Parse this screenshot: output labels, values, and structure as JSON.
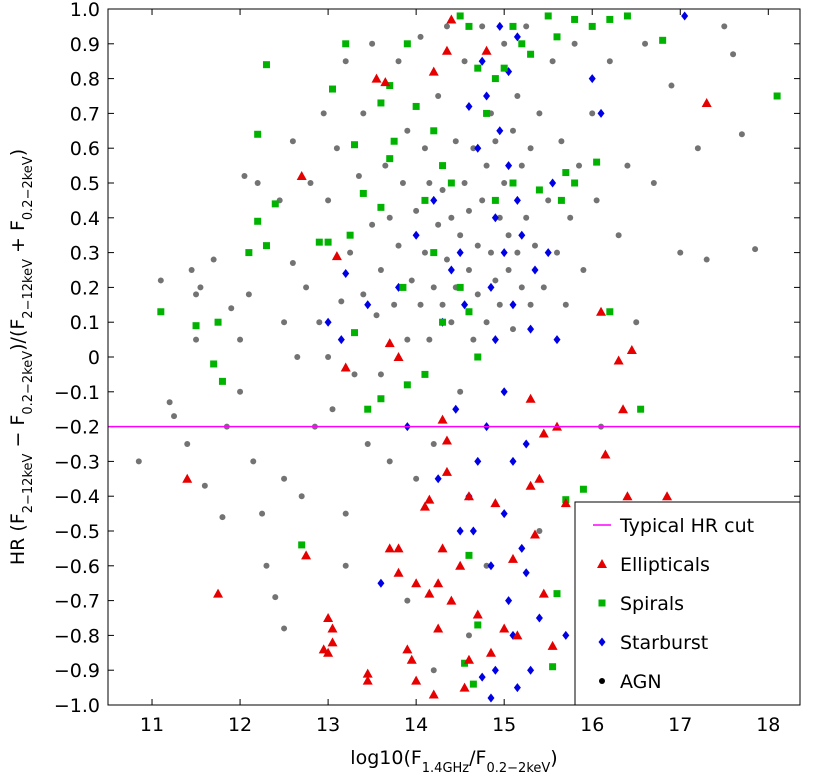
{
  "chart_data": {
    "type": "scatter",
    "xlabel": [
      {
        "text": "log10(F"
      },
      {
        "sub": "1.4GHz"
      },
      {
        "text": "/F"
      },
      {
        "sub": "0.2−2keV"
      },
      {
        "text": ")"
      }
    ],
    "ylabel": [
      {
        "text": "HR (F"
      },
      {
        "sub": "2−12keV"
      },
      {
        "text": " − F"
      },
      {
        "sub": "0.2−2keV"
      },
      {
        "text": ")/(F"
      },
      {
        "sub": "2−12keV"
      },
      {
        "text": " + F"
      },
      {
        "sub": "0.2−2keV"
      },
      {
        "text": ")"
      }
    ],
    "xlim": [
      10.5,
      18.36
    ],
    "ylim": [
      -1,
      1
    ],
    "xticks": [
      11,
      12,
      13,
      14,
      15,
      16,
      17,
      18
    ],
    "yticks": [
      {
        "value": -1,
        "label": "−1.0"
      },
      {
        "value": -0.9,
        "label": "−0.9"
      },
      {
        "value": -0.8,
        "label": "−0.8"
      },
      {
        "value": -0.7,
        "label": "−0.7"
      },
      {
        "value": -0.6,
        "label": "−0.6"
      },
      {
        "value": -0.5,
        "label": "−0.5"
      },
      {
        "value": -0.4,
        "label": "−0.4"
      },
      {
        "value": -0.3,
        "label": "−0.3"
      },
      {
        "value": -0.2,
        "label": "−0.2"
      },
      {
        "value": -0.1,
        "label": "−0.1"
      },
      0,
      0.1,
      0.2,
      0.3,
      0.4,
      0.5,
      0.6,
      0.7,
      0.8,
      0.9,
      {
        "value": 1,
        "label": "1.0"
      }
    ],
    "hlines": [
      {
        "name": "Typical HR cut",
        "color": "#ff00ff",
        "value": -0.2
      }
    ],
    "legend": "lower right",
    "series": [
      {
        "name": "Ellipticals",
        "color": "#e60000",
        "marker": "triangle",
        "alpha": 1,
        "x": [
          11.4,
          11.75,
          12.7,
          12.75,
          13.0,
          13.05,
          13.05,
          12.95,
          13.0,
          13.1,
          13.45,
          13.45,
          13.8,
          13.7,
          13.8,
          13.9,
          13.95,
          14.0,
          14.1,
          14.15,
          14.2,
          14.25,
          14.3,
          14.25,
          14.35,
          14.4,
          14.5,
          14.55,
          14.6,
          14.85,
          14.9,
          14.7,
          15.1,
          15.3,
          15.35,
          15.4,
          15.6,
          15.7,
          15.9,
          16.15,
          16.3,
          16.45,
          16.35,
          16.05,
          16.4,
          16.85,
          16.1,
          16.35,
          17.3,
          13.2,
          13.7,
          13.8,
          14.3,
          14.35,
          15.45,
          15.3,
          13.55,
          13.65,
          14.35,
          14.8,
          14.4,
          14.2,
          15.15,
          15.55,
          15.45,
          15.0,
          14.6,
          14.15,
          14.0
        ],
        "y": [
          -0.35,
          -0.68,
          0.52,
          -0.57,
          -0.75,
          -0.78,
          -0.82,
          -0.84,
          -0.85,
          0.29,
          -0.91,
          -0.93,
          -0.55,
          -0.55,
          -0.62,
          -0.84,
          -0.87,
          -0.93,
          -0.43,
          -0.41,
          -0.97,
          -0.65,
          -0.55,
          -0.78,
          -0.33,
          -0.7,
          -0.6,
          -0.95,
          -0.4,
          -0.85,
          -0.42,
          -0.74,
          -0.58,
          -0.37,
          -0.51,
          -0.35,
          -0.2,
          -0.42,
          -0.43,
          -0.28,
          -0.01,
          0.02,
          -0.15,
          -0.51,
          -0.4,
          -0.4,
          0.13,
          -0.55,
          0.73,
          -0.03,
          0.04,
          0.0,
          -0.18,
          -0.24,
          -0.22,
          -0.12,
          0.8,
          0.79,
          0.88,
          0.88,
          0.97,
          0.82,
          -0.8,
          -0.83,
          -0.68,
          -0.78,
          -0.87,
          -0.68,
          -0.65
        ]
      },
      {
        "name": "Spirals",
        "color": "#00b300",
        "marker": "square",
        "alpha": 1,
        "x": [
          11.1,
          11.5,
          11.7,
          11.75,
          11.8,
          12.2,
          12.3,
          12.2,
          12.4,
          12.3,
          12.1,
          12.7,
          12.9,
          13.0,
          13.05,
          13.2,
          13.25,
          13.3,
          13.6,
          13.7,
          13.75,
          13.7,
          13.4,
          13.6,
          13.9,
          14.0,
          14.1,
          14.2,
          14.3,
          14.4,
          14.5,
          14.6,
          14.7,
          14.8,
          14.9,
          15.0,
          15.1,
          15.2,
          15.3,
          15.5,
          15.6,
          15.8,
          16.0,
          16.2,
          16.4,
          16.8,
          18.1,
          15.7,
          15.8,
          15.4,
          15.65,
          16.05,
          15.9,
          15.7,
          16.55,
          16.2,
          14.6,
          14.7,
          14.5,
          14.1,
          13.9,
          13.6,
          13.45,
          14.7,
          14.55,
          14.65,
          15.55,
          15.6,
          14.6,
          14.2,
          14.3,
          14.9,
          15.1,
          13.3,
          13.85
        ],
        "y": [
          0.13,
          0.09,
          -0.02,
          0.1,
          -0.07,
          0.64,
          0.84,
          0.39,
          0.44,
          0.32,
          0.3,
          -0.54,
          0.33,
          0.33,
          0.77,
          0.9,
          0.35,
          0.61,
          0.73,
          0.78,
          0.62,
          0.57,
          0.47,
          0.43,
          0.9,
          0.72,
          0.45,
          0.65,
          0.55,
          0.5,
          0.98,
          0.95,
          0.83,
          0.7,
          0.8,
          0.83,
          0.95,
          0.9,
          0.87,
          0.98,
          0.92,
          0.97,
          0.95,
          0.97,
          0.98,
          0.91,
          0.75,
          0.53,
          0.5,
          0.48,
          0.45,
          0.56,
          -0.38,
          -0.41,
          -0.15,
          0.13,
          0.13,
          0.0,
          0.2,
          -0.05,
          -0.08,
          -0.12,
          -0.15,
          -0.77,
          -0.88,
          -0.94,
          -0.89,
          -0.68,
          -0.57,
          0.3,
          0.1,
          0.45,
          0.5,
          0.07,
          0.2
        ]
      },
      {
        "name": "Starburst",
        "color": "#0000e6",
        "marker": "diamond",
        "alpha": 1,
        "x": [
          13.0,
          13.15,
          13.2,
          13.6,
          13.45,
          13.8,
          13.9,
          14.0,
          14.2,
          14.3,
          14.4,
          14.5,
          14.55,
          14.6,
          14.65,
          14.7,
          14.7,
          14.75,
          14.8,
          14.8,
          14.85,
          14.85,
          14.9,
          14.9,
          14.95,
          15.0,
          15.0,
          15.0,
          15.05,
          15.05,
          15.1,
          15.1,
          15.15,
          15.15,
          15.2,
          15.2,
          15.25,
          15.3,
          15.35,
          15.4,
          15.5,
          15.55,
          15.6,
          15.7,
          16.0,
          16.1,
          17.05,
          14.85,
          14.95,
          14.6,
          15.1,
          14.5,
          14.45,
          14.75,
          15.3,
          15.05,
          14.25,
          15.25,
          14.9,
          15.15
        ],
        "y": [
          0.1,
          0.05,
          0.24,
          -0.65,
          0.15,
          0.2,
          -0.2,
          0.35,
          0.45,
          0.1,
          0.25,
          0.3,
          0.15,
          -0.4,
          -0.5,
          -0.3,
          0.6,
          0.85,
          0.75,
          -0.2,
          0.2,
          -0.6,
          0.4,
          -0.9,
          0.65,
          0.3,
          -0.1,
          -0.45,
          0.55,
          -0.7,
          -0.3,
          0.15,
          -0.95,
          0.45,
          -0.55,
          0.35,
          -0.25,
          -0.9,
          0.25,
          -0.75,
          0.3,
          0.5,
          0.05,
          -0.8,
          0.8,
          0.7,
          0.98,
          -0.98,
          0.95,
          0.72,
          -0.8,
          -0.5,
          -0.15,
          -0.92,
          0.08,
          0.82,
          -0.35,
          -0.62,
          0.05,
          0.92
        ]
      },
      {
        "name": "AGN",
        "color": "#000000",
        "marker": "circle",
        "alpha": 0.55,
        "x": [
          10.85,
          11.1,
          11.2,
          11.25,
          11.4,
          11.45,
          11.5,
          11.5,
          11.6,
          11.55,
          11.7,
          11.8,
          11.85,
          11.9,
          12.0,
          12.0,
          12.05,
          12.1,
          12.15,
          12.2,
          12.25,
          12.3,
          12.4,
          12.45,
          12.5,
          12.5,
          12.6,
          12.6,
          12.65,
          12.7,
          12.75,
          12.8,
          12.85,
          12.9,
          12.95,
          13.0,
          13.0,
          13.05,
          13.1,
          13.15,
          13.2,
          13.2,
          13.25,
          13.3,
          13.35,
          13.4,
          13.4,
          13.45,
          13.5,
          13.5,
          13.55,
          13.6,
          13.6,
          13.65,
          13.7,
          13.7,
          13.75,
          13.8,
          13.8,
          13.85,
          13.9,
          13.9,
          13.95,
          14.0,
          14.0,
          14.05,
          14.05,
          14.1,
          14.1,
          14.15,
          14.15,
          14.2,
          14.2,
          14.25,
          14.25,
          14.3,
          14.3,
          14.35,
          14.35,
          14.4,
          14.4,
          14.45,
          14.45,
          14.5,
          14.5,
          14.55,
          14.55,
          14.6,
          14.6,
          14.65,
          14.65,
          14.7,
          14.7,
          14.75,
          14.75,
          14.8,
          14.8,
          14.85,
          14.85,
          14.9,
          14.9,
          14.95,
          14.95,
          15.0,
          15.0,
          15.05,
          15.05,
          15.1,
          15.1,
          15.15,
          15.15,
          15.2,
          15.2,
          15.25,
          15.25,
          15.3,
          15.3,
          15.35,
          15.4,
          15.45,
          15.5,
          15.55,
          15.6,
          15.65,
          15.7,
          15.75,
          15.8,
          15.85,
          15.9,
          16.0,
          16.05,
          16.1,
          16.2,
          16.3,
          16.4,
          16.5,
          16.6,
          16.7,
          16.9,
          17.0,
          17.2,
          17.3,
          17.5,
          17.6,
          17.7,
          17.85,
          15.9,
          14.2,
          13.2,
          12.5,
          14.8,
          15.4,
          14.6,
          13.9
        ],
        "y": [
          -0.3,
          0.22,
          -0.13,
          -0.17,
          -0.25,
          0.25,
          0.05,
          0.18,
          -0.37,
          0.2,
          0.28,
          -0.46,
          -0.2,
          0.14,
          0.05,
          -0.1,
          0.52,
          0.18,
          -0.3,
          0.5,
          -0.45,
          -0.6,
          -0.69,
          0.45,
          0.1,
          -0.35,
          0.62,
          0.27,
          0.0,
          -0.4,
          0.2,
          0.5,
          -0.2,
          0.1,
          0.7,
          0.0,
          0.45,
          -0.15,
          0.6,
          0.16,
          0.85,
          -0.45,
          0.3,
          -0.05,
          0.52,
          0.18,
          0.7,
          -0.25,
          0.38,
          0.9,
          0.12,
          -0.05,
          0.25,
          0.55,
          0.4,
          -0.3,
          0.15,
          0.85,
          0.32,
          0.5,
          0.05,
          0.65,
          0.22,
          0.42,
          -0.35,
          0.15,
          0.92,
          0.3,
          0.6,
          0.05,
          0.5,
          0.2,
          -0.25,
          0.38,
          0.75,
          0.15,
          0.48,
          0.28,
          0.95,
          0.1,
          0.4,
          0.62,
          0.2,
          0.35,
          -0.1,
          0.5,
          0.85,
          0.25,
          0.42,
          0.05,
          0.6,
          0.32,
          0.18,
          0.45,
          0.95,
          0.1,
          0.55,
          0.3,
          0.7,
          0.22,
          0.62,
          0.15,
          0.4,
          0.5,
          0.9,
          0.25,
          0.35,
          0.08,
          0.65,
          0.3,
          0.75,
          0.2,
          0.55,
          0.4,
          0.95,
          0.15,
          0.6,
          0.32,
          0.7,
          0.2,
          0.45,
          0.85,
          0.3,
          0.62,
          0.15,
          0.4,
          0.9,
          0.55,
          0.25,
          0.7,
          0.45,
          -0.2,
          0.85,
          0.35,
          0.55,
          0.1,
          0.9,
          0.5,
          0.78,
          0.3,
          0.6,
          0.28,
          0.95,
          0.87,
          0.64,
          0.31,
          -0.99,
          -0.9,
          -0.6,
          -0.78,
          -0.6,
          -0.5,
          -0.8,
          -0.7
        ]
      }
    ]
  }
}
